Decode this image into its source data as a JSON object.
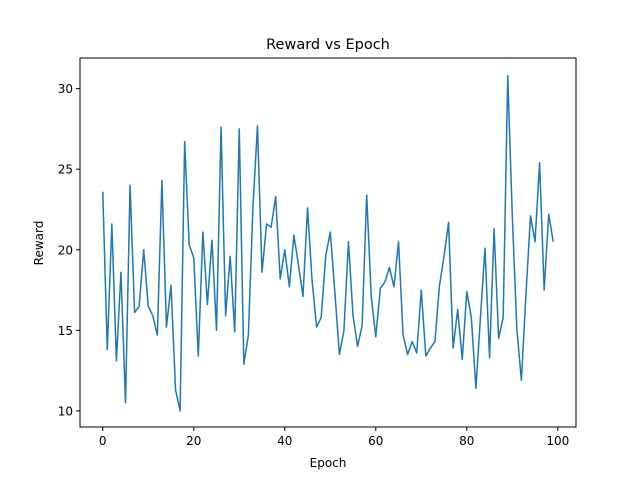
{
  "chart_data": {
    "type": "line",
    "title": "Reward vs Epoch",
    "xlabel": "Epoch",
    "ylabel": "Reward",
    "xlim": [
      -5,
      104
    ],
    "ylim": [
      9.0,
      31.9
    ],
    "xticks": [
      0,
      20,
      40,
      60,
      80,
      100
    ],
    "yticks": [
      10,
      15,
      20,
      25,
      30
    ],
    "grid": false,
    "line_color": "#1f77b4",
    "series": [
      {
        "x": [
          0,
          1,
          2,
          3,
          4,
          5,
          6,
          7,
          8,
          9,
          10,
          11,
          12,
          13,
          14,
          15,
          16,
          17,
          18,
          19,
          20,
          21,
          22,
          23,
          24,
          25,
          26,
          27,
          28,
          29,
          30,
          31,
          32,
          33,
          34,
          35,
          36,
          37,
          38,
          39,
          40,
          41,
          42,
          43,
          44,
          45,
          46,
          47,
          48,
          49,
          50,
          51,
          52,
          53,
          54,
          55,
          56,
          57,
          58,
          59,
          60,
          61,
          62,
          63,
          64,
          65,
          66,
          67,
          68,
          69,
          70,
          71,
          72,
          73,
          74,
          75,
          76,
          77,
          78,
          79,
          80,
          81,
          82,
          83,
          84,
          85,
          86,
          87,
          88,
          89,
          90,
          91,
          92,
          93,
          94,
          95,
          96,
          97,
          98,
          99
        ],
        "values": [
          23.6,
          13.8,
          21.6,
          13.1,
          18.6,
          10.5,
          24.0,
          16.1,
          16.5,
          20.0,
          16.5,
          15.9,
          14.7,
          24.3,
          15.2,
          17.8,
          11.3,
          10.0,
          26.7,
          20.3,
          19.5,
          13.4,
          21.1,
          16.6,
          20.6,
          15.0,
          27.6,
          15.9,
          19.6,
          14.9,
          27.5,
          12.9,
          14.7,
          22.6,
          27.7,
          18.6,
          21.6,
          21.4,
          23.3,
          18.2,
          20.0,
          17.7,
          20.9,
          19.1,
          17.1,
          22.6,
          18.1,
          15.2,
          15.8,
          19.6,
          21.1,
          17.4,
          13.5,
          15.0,
          20.5,
          15.9,
          14.0,
          15.3,
          23.4,
          17.1,
          14.6,
          17.6,
          18.0,
          18.9,
          17.7,
          20.5,
          14.7,
          13.5,
          14.3,
          13.6,
          17.5,
          13.4,
          13.9,
          14.3,
          17.8,
          19.6,
          21.7,
          13.9,
          16.3,
          13.2,
          17.4,
          15.8,
          11.4,
          15.8,
          20.1,
          13.3,
          21.3,
          14.5,
          15.8,
          30.8,
          22.1,
          15.1,
          11.9,
          17.2,
          22.1,
          20.5,
          25.4,
          17.5,
          22.2,
          20.5
        ]
      }
    ]
  }
}
